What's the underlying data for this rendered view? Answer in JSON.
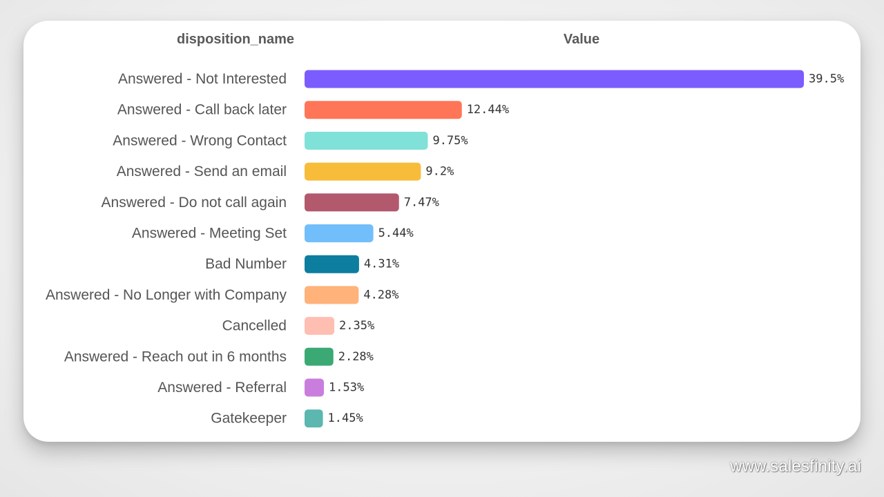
{
  "headers": {
    "category": "disposition_name",
    "value": "Value"
  },
  "watermark": "www.salesfinity.ai",
  "chart_data": {
    "type": "bar",
    "orientation": "horizontal",
    "categories": [
      "Answered - Not Interested",
      "Answered - Call back later",
      "Answered - Wrong Contact",
      "Answered - Send an email",
      "Answered - Do not call again",
      "Answered - Meeting Set",
      "Bad Number",
      "Answered - No Longer with Company",
      "Cancelled",
      "Answered - Reach out in 6 months",
      "Answered - Referral",
      "Gatekeeper"
    ],
    "values": [
      39.5,
      12.44,
      9.75,
      9.2,
      7.47,
      5.44,
      4.31,
      4.28,
      2.35,
      2.28,
      1.53,
      1.45
    ],
    "labels": [
      "39.5%",
      "12.44%",
      "9.75%",
      "9.2%",
      "7.47%",
      "5.44%",
      "4.31%",
      "4.28%",
      "2.35%",
      "2.28%",
      "1.53%",
      "1.45%"
    ],
    "colors": [
      "#7b5cff",
      "#ff7557",
      "#80e1d9",
      "#f8bc3b",
      "#b2596e",
      "#72befa",
      "#0d7ea0",
      "#ffb27a",
      "#ffbeb2",
      "#3ba974",
      "#c97ede",
      "#5bb7af"
    ],
    "xlim": [
      0,
      39.5
    ],
    "grid": false,
    "legend": "none"
  }
}
